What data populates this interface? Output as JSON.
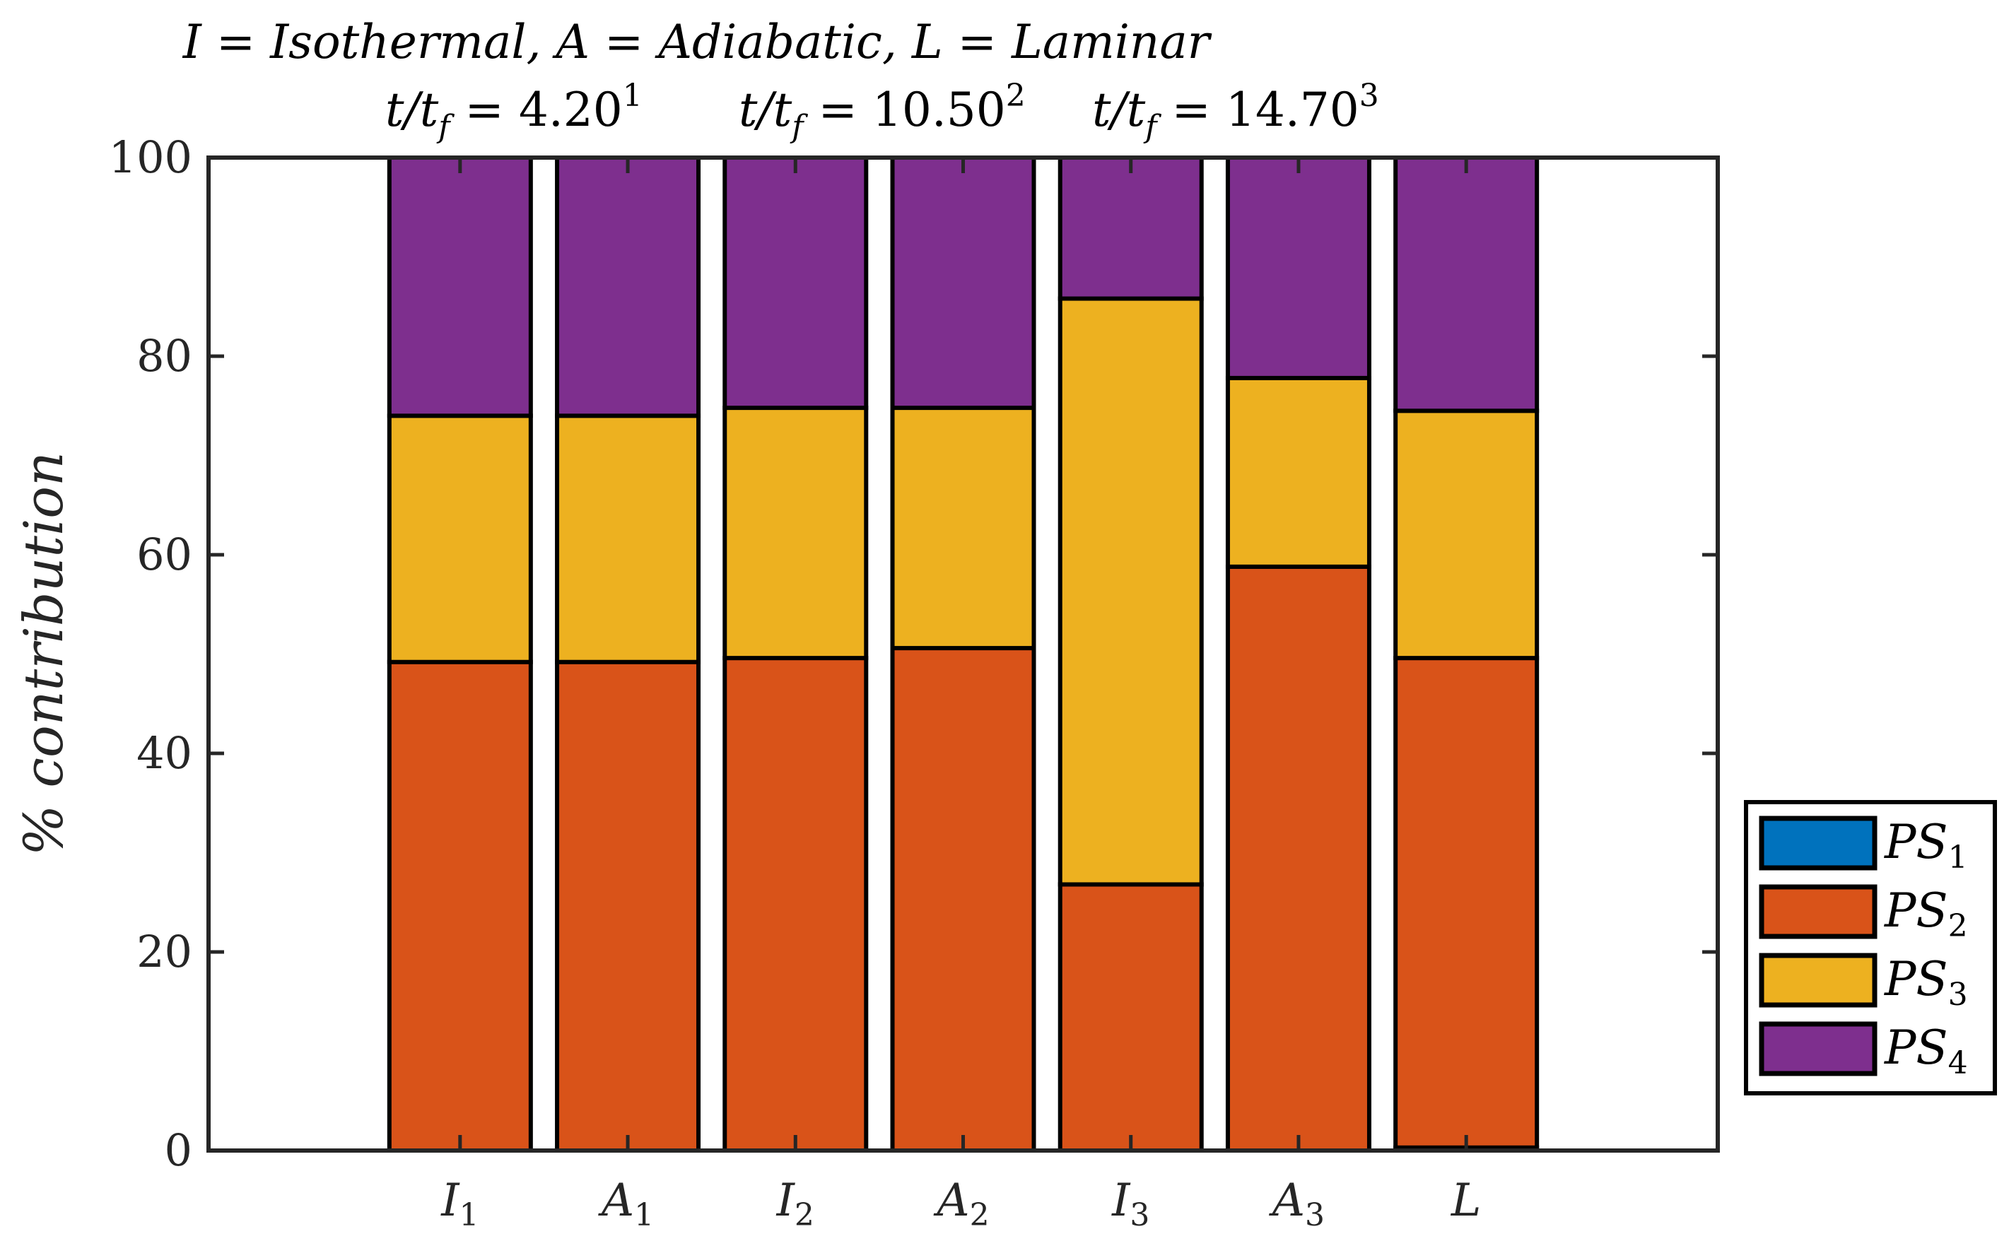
{
  "chart_data": {
    "type": "bar",
    "stacked": true,
    "title_line1": "I = Isothermal, A = Adiabatic, L = Laminar",
    "title_line2": [
      {
        "lhs": "t/t",
        "sub": "f",
        "val": "= 4.20",
        "sup": "1"
      },
      {
        "lhs": "t/t",
        "sub": "f",
        "val": "= 10.50",
        "sup": "2"
      },
      {
        "lhs": "t/t",
        "sub": "f",
        "val": "= 14.70",
        "sup": "3"
      }
    ],
    "ylabel": "% contribution",
    "xlabel": "",
    "ylim": [
      0,
      100
    ],
    "yticks": [
      "0",
      "20",
      "40",
      "60",
      "80",
      "100"
    ],
    "categories": [
      {
        "base": "I",
        "sub": "1"
      },
      {
        "base": "A",
        "sub": "1"
      },
      {
        "base": "I",
        "sub": "2"
      },
      {
        "base": "A",
        "sub": "2"
      },
      {
        "base": "I",
        "sub": "3"
      },
      {
        "base": "A",
        "sub": "3"
      },
      {
        "base": "L",
        "sub": ""
      }
    ],
    "series": [
      {
        "name": "PS",
        "sub": "1",
        "color": "#0072BD",
        "values": [
          0,
          0,
          0,
          0,
          0,
          0,
          0.3
        ]
      },
      {
        "name": "PS",
        "sub": "2",
        "color": "#D95319",
        "values": [
          49.2,
          49.2,
          49.6,
          50.6,
          26.8,
          58.8,
          49.3
        ]
      },
      {
        "name": "PS",
        "sub": "3",
        "color": "#EDB120",
        "values": [
          24.8,
          24.8,
          25.2,
          24.2,
          59.0,
          19.0,
          24.9
        ]
      },
      {
        "name": "PS",
        "sub": "4",
        "color": "#7E2F8E",
        "values": [
          26.0,
          26.0,
          25.2,
          25.2,
          14.2,
          22.2,
          25.5
        ]
      }
    ],
    "legend": "outside-right-bottom"
  }
}
